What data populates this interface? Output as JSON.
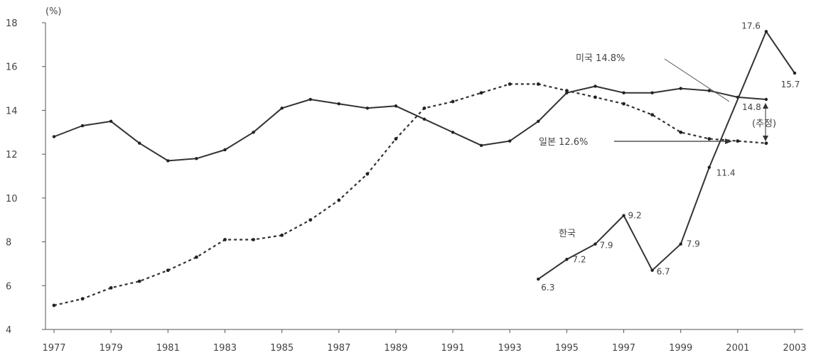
{
  "chart_data": {
    "type": "line",
    "ylabel": "(%)",
    "ylim": [
      4,
      18
    ],
    "yticks": [
      "18",
      "16",
      "14",
      "12",
      "10",
      "8",
      "6",
      "4"
    ],
    "x_tick_labels": [
      "1977",
      "1979",
      "1981",
      "1983",
      "1985",
      "1987",
      "1989",
      "1991",
      "1993",
      "1995",
      "1997",
      "1999",
      "2001",
      "2003"
    ],
    "grid": false,
    "series": [
      {
        "name": "미국",
        "style": "solid",
        "color": "#333333",
        "x": [
          1977,
          1978,
          1979,
          1980,
          1981,
          1982,
          1983,
          1984,
          1985,
          1986,
          1987,
          1988,
          1989,
          1990,
          1991,
          1992,
          1993,
          1994,
          1995,
          1996,
          1997,
          1998,
          1999,
          2000,
          2001,
          2002
        ],
        "y": [
          12.8,
          13.3,
          13.5,
          12.5,
          11.7,
          11.8,
          12.2,
          13.0,
          14.1,
          14.5,
          14.3,
          14.1,
          14.2,
          13.6,
          13.0,
          12.4,
          12.6,
          13.5,
          14.8,
          15.1,
          14.8,
          14.8,
          15.0,
          14.9,
          14.6,
          14.5
        ]
      },
      {
        "name": "일본",
        "style": "dotted",
        "color": "#333333",
        "x": [
          1977,
          1978,
          1979,
          1980,
          1981,
          1982,
          1983,
          1984,
          1985,
          1986,
          1987,
          1988,
          1989,
          1990,
          1991,
          1992,
          1993,
          1994,
          1995,
          1996,
          1997,
          1998,
          1999,
          2000,
          2001,
          2002
        ],
        "y": [
          5.1,
          5.4,
          5.9,
          6.2,
          6.7,
          7.3,
          8.1,
          8.1,
          8.3,
          9.0,
          9.9,
          11.1,
          12.7,
          14.1,
          14.4,
          14.8,
          15.2,
          15.2,
          14.9,
          14.6,
          14.3,
          13.8,
          13.0,
          12.7,
          12.6,
          12.5
        ]
      },
      {
        "name": "한국",
        "style": "solid",
        "color": "#333333",
        "x": [
          1994,
          1995,
          1996,
          1997,
          1998,
          1999,
          2000,
          2002,
          2003
        ],
        "y": [
          6.3,
          7.2,
          7.9,
          9.2,
          6.7,
          7.9,
          11.4,
          17.6,
          15.7
        ],
        "labels": [
          "6.3",
          "7.2",
          "7.9",
          "9.2",
          "6.7",
          "7.9",
          "11.4",
          "17.6",
          "15.7"
        ]
      }
    ],
    "annotations": {
      "us_callout": "미국 14.8%",
      "us_value": "14.8",
      "japan_callout": "일본 12.6%",
      "korea_label": "한국",
      "estimate": "(추정)"
    }
  }
}
